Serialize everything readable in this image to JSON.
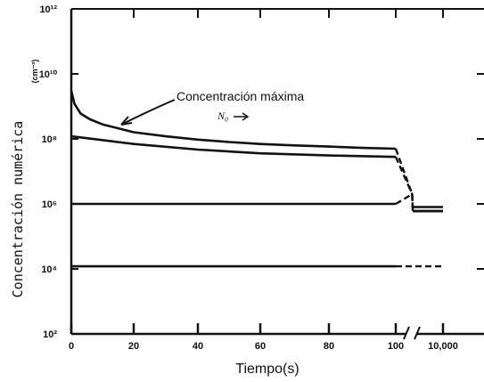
{
  "chart_data": {
    "type": "line",
    "xlabel": "Tiempo(s)",
    "ylabel": "Concentración numérica",
    "yunit": "(cm⁻³)",
    "yscale": "log",
    "ylim": [
      100.0,
      1000000000000.0
    ],
    "x_tick_labels": [
      "0",
      "20",
      "40",
      "60",
      "80",
      "100",
      "10,000"
    ],
    "y_tick_labels": [
      "10²",
      "10⁴",
      "10⁶",
      "10⁸",
      "10¹⁰",
      "10¹²"
    ],
    "grid": false,
    "annotations": [
      "Concentración máxima",
      "N₀"
    ],
    "series": [
      {
        "x": [
          0,
          1,
          3,
          6,
          10,
          20,
          30,
          40,
          50,
          60,
          70,
          80,
          90,
          100,
          105,
          115,
          10000
        ],
        "y": [
          3000000000.0,
          1200000000.0,
          600000000.0,
          400000000.0,
          280000000.0,
          160000000.0,
          120000000.0,
          95000000.0,
          80000000.0,
          70000000.0,
          63000000.0,
          58000000.0,
          53000000.0,
          50000000.0,
          2000000.0,
          600000.0,
          600000.0
        ]
      },
      {
        "x": [
          0,
          20,
          40,
          60,
          80,
          100,
          105,
          115,
          10000
        ],
        "y": [
          120000000.0,
          70000000.0,
          47000000.0,
          36000000.0,
          31000000.0,
          28000000.0,
          2000000.0,
          600000.0,
          600000.0
        ]
      },
      {
        "x": [
          0,
          20,
          40,
          60,
          80,
          100,
          105,
          115,
          10000
        ],
        "y": [
          1000000.0,
          1000000.0,
          1000000.0,
          1000000.0,
          1000000.0,
          1000000.0,
          2000000.0,
          800000.0,
          800000.0
        ]
      },
      {
        "x": [
          0,
          20,
          40,
          60,
          80,
          100,
          10000
        ],
        "y": [
          12000.0,
          12000.0,
          12000.0,
          12000.0,
          12000.0,
          12000.0,
          12000.0
        ]
      }
    ]
  }
}
